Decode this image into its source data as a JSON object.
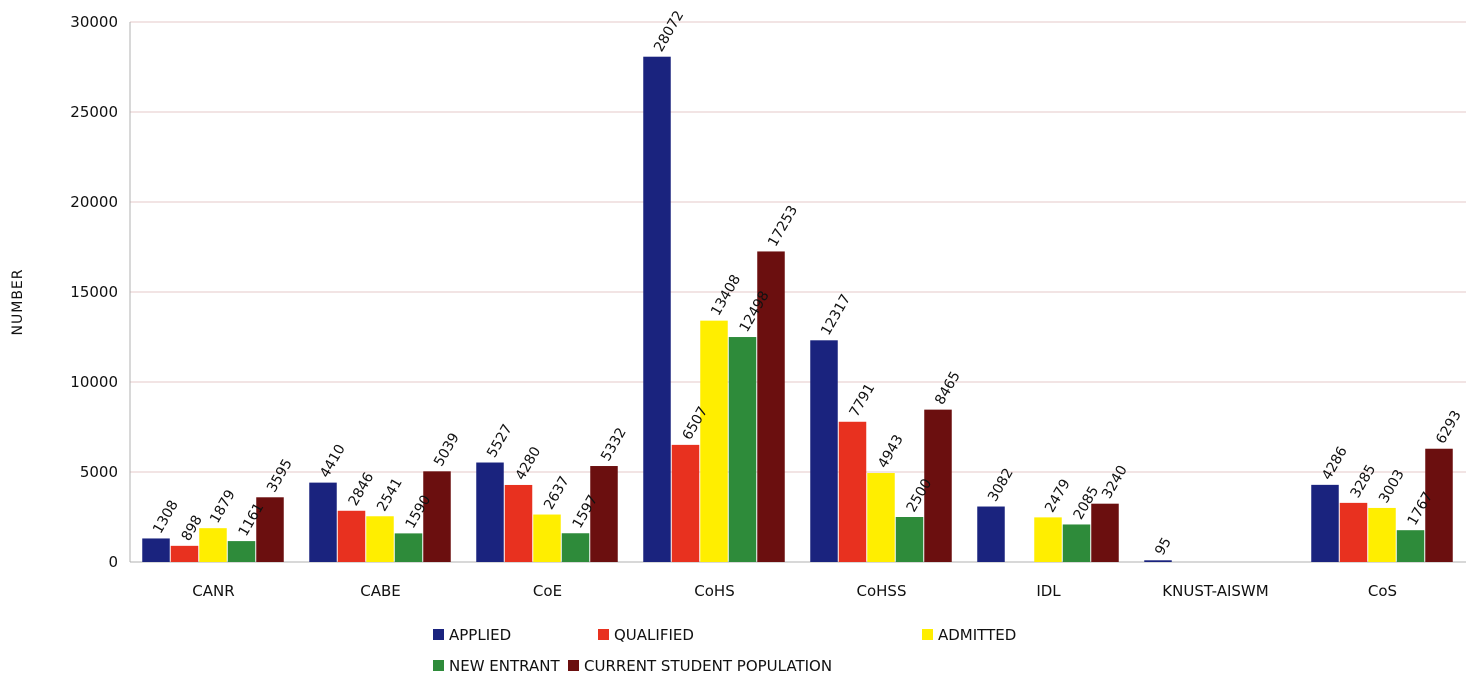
{
  "chart_data": {
    "type": "bar",
    "ylabel": "NUMBER",
    "xlabel": "",
    "ylim": [
      0,
      30000
    ],
    "yticks": [
      "0",
      "5000",
      "10000",
      "15000",
      "20000",
      "25000",
      "30000"
    ],
    "categories": [
      "CANR",
      "CABE",
      "CoE",
      "CoHS",
      "CoHSS",
      "IDL",
      "KNUST-AISWM",
      "CoS"
    ],
    "grid": true,
    "legend_position": "bottom",
    "series": [
      {
        "name": "APPLIED",
        "color": "#1a237e",
        "values": [
          1308,
          4410,
          5527,
          28072,
          12317,
          3082,
          95,
          4286
        ]
      },
      {
        "name": "QUALIFIED",
        "color": "#e8311f",
        "values": [
          898,
          2846,
          4280,
          6507,
          7791,
          null,
          null,
          3285
        ]
      },
      {
        "name": "ADMITTED",
        "color": "#ffee00",
        "values": [
          1879,
          2541,
          2637,
          13408,
          4943,
          2479,
          null,
          3003
        ]
      },
      {
        "name": "NEW ENTRANT",
        "color": "#2e8b3a",
        "values": [
          1161,
          1590,
          1597,
          12498,
          2500,
          2085,
          null,
          1767
        ]
      },
      {
        "name": "CURRENT STUDENT POPULATION",
        "color": "#6b0f0f",
        "values": [
          3595,
          5039,
          5332,
          17253,
          8465,
          3240,
          null,
          6293
        ]
      }
    ]
  }
}
